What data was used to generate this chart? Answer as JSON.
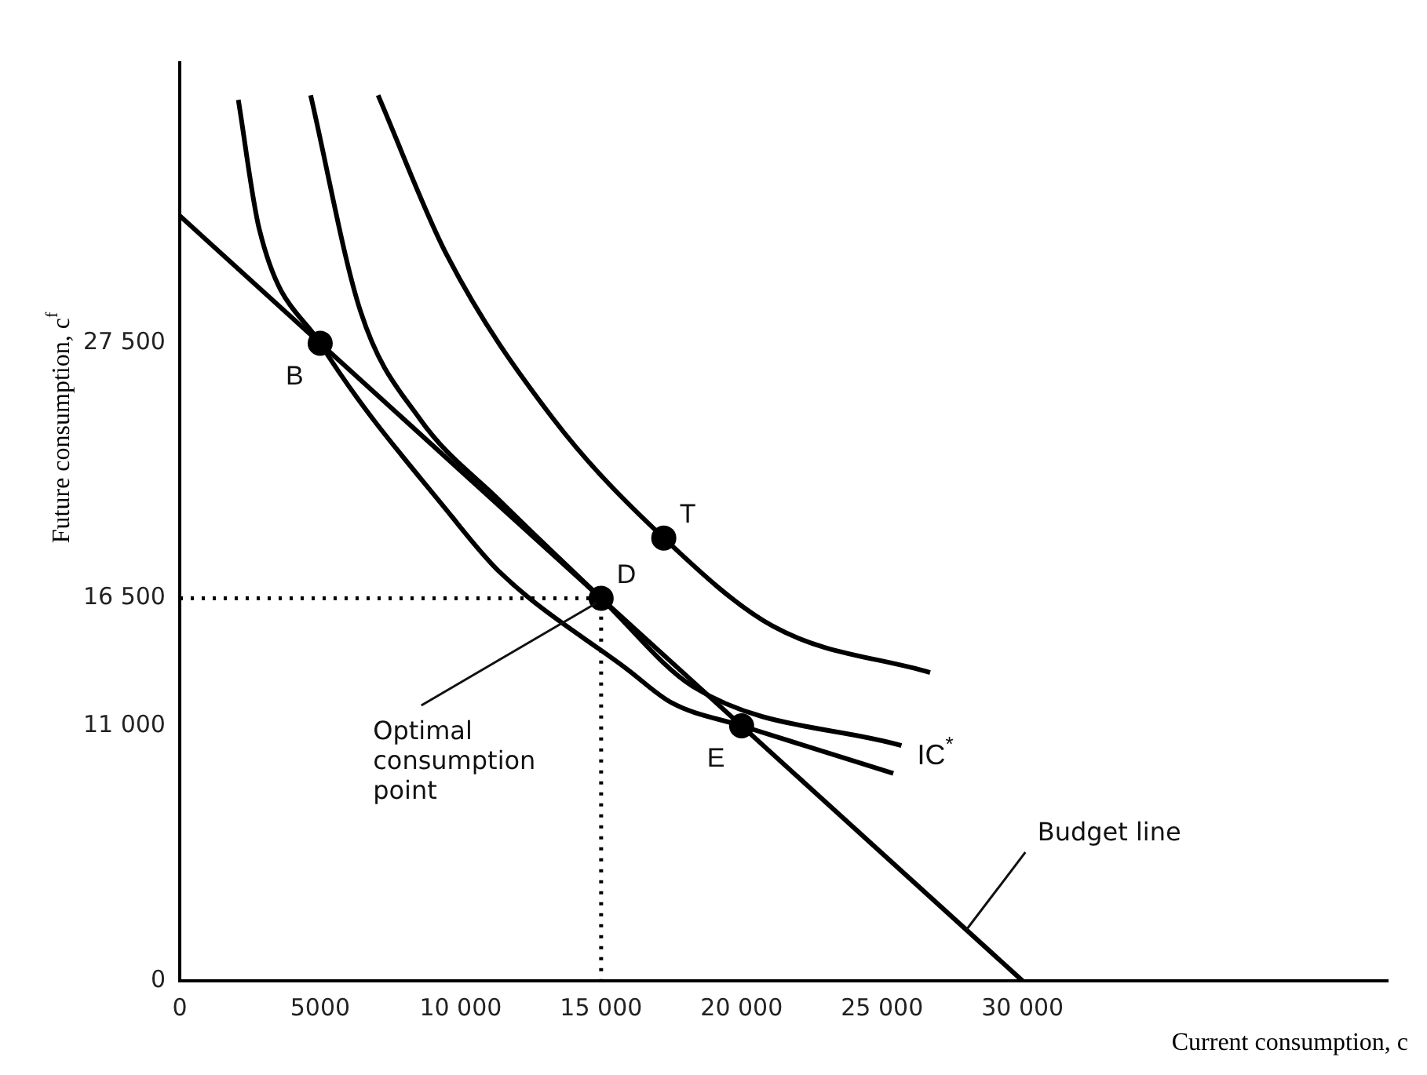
{
  "chart_data": {
    "type": "line",
    "xlabel": "Current consumption, c",
    "ylabel": "Future consumption, c$^{f}$",
    "xlim": [
      0,
      43000
    ],
    "ylim": [
      0,
      39600
    ],
    "xticks": [
      0,
      5000,
      {
        "value": 10000,
        "label": "10 000"
      },
      {
        "value": 15000,
        "label": "15 000"
      },
      {
        "value": 20000,
        "label": "20 000"
      },
      {
        "value": 25000,
        "label": "25 000"
      },
      {
        "value": 30000,
        "label": "30 000"
      }
    ],
    "yticks": [
      0,
      {
        "value": 11000,
        "label": "11 000"
      },
      {
        "value": 16500,
        "label": "16 500"
      },
      {
        "value": 27500,
        "label": "27 500"
      }
    ],
    "grid": false,
    "legend": false,
    "marker": "none",
    "line_style": "solid",
    "series": [
      {
        "color": "#000000",
        "x": [
          0,
          30000
        ],
        "values": [
          33000,
          0
        ]
      },
      {
        "color": "#000000",
        "x": [
          2086,
          2830,
          5000,
          9690,
          11400,
          15970,
          17500,
          20000,
          25400
        ],
        "values": [
          38000,
          32430,
          27500,
          20020,
          17620,
          13400,
          12000,
          11000,
          8950
        ]
      },
      {
        "name": "IC$^{*}$",
        "color": "#000000",
        "x": [
          4660,
          6430,
          8540,
          11400,
          15000,
          18260,
          25690
        ],
        "values": [
          38200,
          28900,
          24250,
          20700,
          16500,
          12700,
          10150
        ]
      },
      {
        "color": "#000000",
        "x": [
          7060,
          9510,
          13290,
          17230,
          21110,
          26710
        ],
        "values": [
          38200,
          31300,
          24250,
          19100,
          15300,
          13300
        ]
      },
      {
        "color": "#000000",
        "line_style": "dotted",
        "x": [
          0,
          15000,
          15000
        ],
        "values": [
          16500,
          16500,
          0
        ]
      },
      {
        "type": "scatter",
        "color": "#000000",
        "marker": "circle",
        "x": [
          5000,
          15000,
          20000,
          17230
        ],
        "values": [
          27500,
          16500,
          11000,
          19100
        ]
      }
    ],
    "annotations": [
      {
        "text": "B",
        "x": 5000,
        "y": 27500
      },
      {
        "text": "D",
        "x": 15000,
        "y": 16500
      },
      {
        "text": "E",
        "x": 20000,
        "y": 11000
      },
      {
        "text": "T",
        "x": 17230,
        "y": 19100
      },
      {
        "text": "Optimal consumption point",
        "x": 15000,
        "y": 16500
      },
      {
        "text": "Budget line",
        "x": 28000,
        "y": 2200
      }
    ]
  }
}
